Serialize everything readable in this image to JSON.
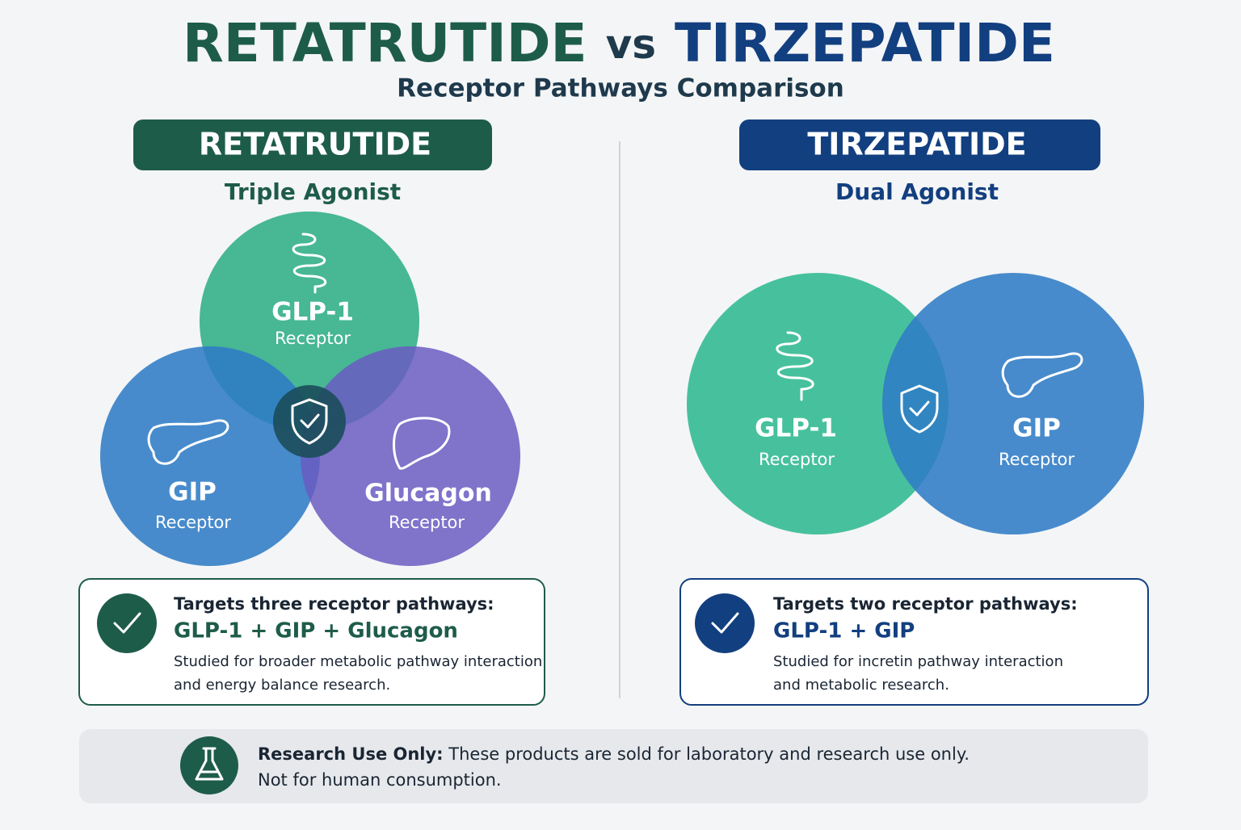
{
  "header": {
    "title_left": "RETATRUTIDE",
    "title_vs": "vs",
    "title_right": "TIRZEPATIDE",
    "subtitle": "Receptor Pathways Comparison"
  },
  "panels": [
    {
      "name": "RETATRUTIDE",
      "subtitle": "Triple Agonist",
      "circles": [
        {
          "label": "GLP-1",
          "sublabel": "Receptor"
        },
        {
          "label": "GIP",
          "sublabel": "Receptor"
        },
        {
          "label": "Glucagon",
          "sublabel": "Receptor"
        }
      ],
      "box": {
        "heading": "Targets three receptor pathways:",
        "targets": "GLP-1 + GIP + Glucagon",
        "description": [
          "Studied for broader metabolic pathway interaction",
          "and energy balance research."
        ]
      }
    },
    {
      "name": "TIRZEPATIDE",
      "subtitle": "Dual Agonist",
      "circles": [
        {
          "label": "GLP-1",
          "sublabel": "Receptor"
        },
        {
          "label": "GIP",
          "sublabel": "Receptor"
        }
      ],
      "box": {
        "heading": "Targets two receptor pathways:",
        "targets": "GLP-1 + GIP",
        "description": [
          "Studied for incretin pathway interaction",
          "and metabolic research."
        ]
      }
    }
  ],
  "footer": {
    "label": "Research Use Only:",
    "text": [
      "These products are sold for laboratory and research use only.",
      "Not for human consumption."
    ]
  }
}
